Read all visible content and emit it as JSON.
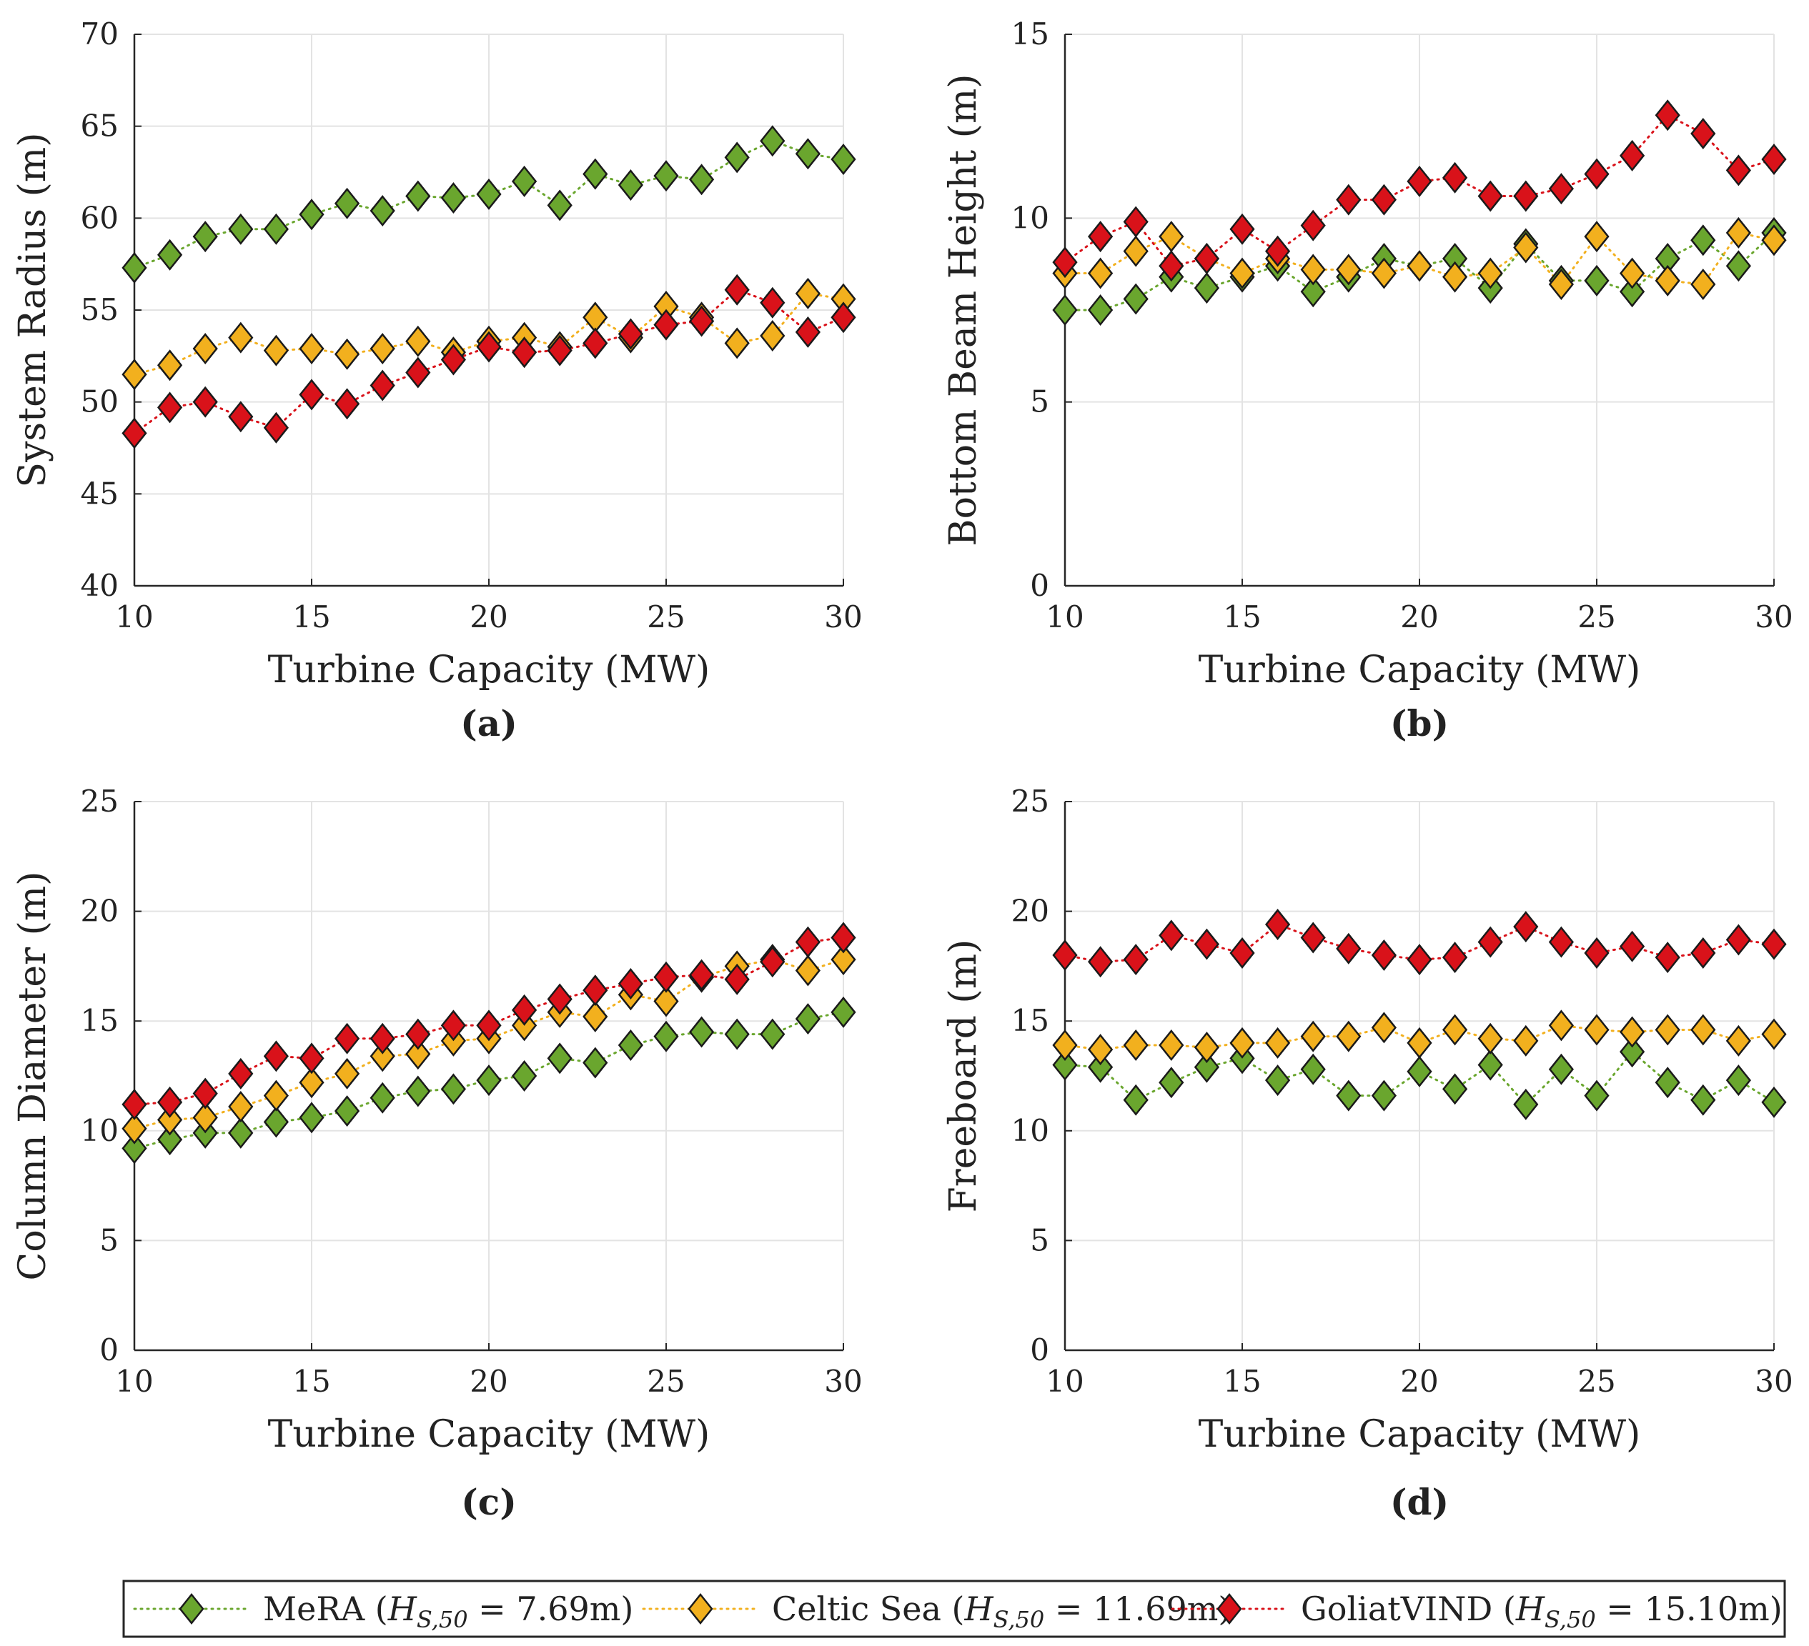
{
  "chart_data": [
    {
      "type": "line",
      "caption": "(a)",
      "xlabel": "Turbine Capacity (MW)",
      "ylabel": "System Radius (m)",
      "xlim": [
        10,
        30
      ],
      "ylim": [
        40,
        70
      ],
      "xticks": [
        10,
        15,
        20,
        25,
        30
      ],
      "yticks": [
        40,
        45,
        50,
        55,
        60,
        65,
        70
      ],
      "grid": true,
      "x": [
        10,
        11,
        12,
        13,
        14,
        15,
        16,
        17,
        18,
        19,
        20,
        21,
        22,
        23,
        24,
        25,
        26,
        27,
        28,
        29,
        30
      ],
      "series": [
        {
          "name": "MeRA",
          "values": [
            57.3,
            58.0,
            59.0,
            59.4,
            59.4,
            60.2,
            60.8,
            60.4,
            61.2,
            61.1,
            61.3,
            62.0,
            60.7,
            62.4,
            61.8,
            62.3,
            62.1,
            63.3,
            64.2,
            63.5,
            63.2
          ]
        },
        {
          "name": "Celtic Sea",
          "values": [
            51.5,
            52.0,
            52.9,
            53.5,
            52.8,
            52.9,
            52.6,
            52.9,
            53.3,
            52.7,
            53.3,
            53.5,
            53.0,
            54.6,
            53.5,
            55.2,
            54.6,
            53.2,
            53.6,
            55.9,
            55.6
          ]
        },
        {
          "name": "GoliatVIND",
          "values": [
            48.3,
            49.7,
            50.0,
            49.2,
            48.6,
            50.4,
            49.9,
            50.9,
            51.6,
            52.3,
            53.0,
            52.7,
            52.8,
            53.2,
            53.7,
            54.2,
            54.4,
            56.1,
            55.4,
            53.8,
            54.6
          ]
        }
      ]
    },
    {
      "type": "line",
      "caption": "(b)",
      "xlabel": "Turbine Capacity (MW)",
      "ylabel": "Bottom Beam Height (m)",
      "xlim": [
        10,
        30
      ],
      "ylim": [
        0,
        15
      ],
      "xticks": [
        10,
        15,
        20,
        25,
        30
      ],
      "yticks": [
        0,
        5,
        10,
        15
      ],
      "grid": true,
      "x": [
        10,
        11,
        12,
        13,
        14,
        15,
        16,
        17,
        18,
        19,
        20,
        21,
        22,
        23,
        24,
        25,
        26,
        27,
        28,
        29,
        30
      ],
      "series": [
        {
          "name": "MeRA",
          "values": [
            7.5,
            7.5,
            7.8,
            8.4,
            8.1,
            8.4,
            8.7,
            8.0,
            8.4,
            8.9,
            8.7,
            8.9,
            8.1,
            9.3,
            8.3,
            8.3,
            8.0,
            8.9,
            9.4,
            8.7,
            9.6
          ]
        },
        {
          "name": "Celtic Sea",
          "values": [
            8.5,
            8.5,
            9.1,
            9.5,
            8.9,
            8.5,
            8.9,
            8.6,
            8.6,
            8.5,
            8.7,
            8.4,
            8.5,
            9.2,
            8.2,
            9.5,
            8.5,
            8.3,
            8.2,
            9.6,
            9.4
          ]
        },
        {
          "name": "GoliatVIND",
          "values": [
            8.8,
            9.5,
            9.9,
            8.7,
            8.9,
            9.7,
            9.1,
            9.8,
            10.5,
            10.5,
            11.0,
            11.1,
            10.6,
            10.6,
            10.8,
            11.2,
            11.7,
            12.8,
            12.3,
            11.3,
            11.6
          ]
        }
      ]
    },
    {
      "type": "line",
      "caption": "(c)",
      "xlabel": "Turbine Capacity (MW)",
      "ylabel": "Column Diameter (m)",
      "xlim": [
        10,
        30
      ],
      "ylim": [
        0,
        25
      ],
      "xticks": [
        10,
        15,
        20,
        25,
        30
      ],
      "yticks": [
        0,
        5,
        10,
        15,
        20,
        25
      ],
      "grid": true,
      "x": [
        10,
        11,
        12,
        13,
        14,
        15,
        16,
        17,
        18,
        19,
        20,
        21,
        22,
        23,
        24,
        25,
        26,
        27,
        28,
        29,
        30
      ],
      "series": [
        {
          "name": "MeRA",
          "values": [
            9.2,
            9.6,
            9.9,
            9.9,
            10.4,
            10.6,
            10.9,
            11.5,
            11.8,
            11.9,
            12.3,
            12.5,
            13.3,
            13.1,
            13.9,
            14.3,
            14.5,
            14.4,
            14.4,
            15.1,
            15.4
          ]
        },
        {
          "name": "Celtic Sea",
          "values": [
            10.1,
            10.5,
            10.6,
            11.1,
            11.6,
            12.2,
            12.6,
            13.4,
            13.5,
            14.1,
            14.2,
            14.8,
            15.4,
            15.2,
            16.2,
            15.9,
            17.0,
            17.5,
            17.8,
            17.3,
            17.8
          ]
        },
        {
          "name": "GoliatVIND",
          "values": [
            11.2,
            11.3,
            11.7,
            12.6,
            13.4,
            13.3,
            14.2,
            14.2,
            14.4,
            14.8,
            14.8,
            15.5,
            16.0,
            16.4,
            16.7,
            17.0,
            17.1,
            16.9,
            17.7,
            18.6,
            18.8
          ]
        }
      ]
    },
    {
      "type": "line",
      "caption": "(d)",
      "xlabel": "Turbine Capacity (MW)",
      "ylabel": "Freeboard (m)",
      "xlim": [
        10,
        30
      ],
      "ylim": [
        0,
        25
      ],
      "xticks": [
        10,
        15,
        20,
        25,
        30
      ],
      "yticks": [
        0,
        5,
        10,
        15,
        20,
        25
      ],
      "grid": true,
      "x": [
        10,
        11,
        12,
        13,
        14,
        15,
        16,
        17,
        18,
        19,
        20,
        21,
        22,
        23,
        24,
        25,
        26,
        27,
        28,
        29,
        30
      ],
      "series": [
        {
          "name": "MeRA",
          "values": [
            13.0,
            12.9,
            11.4,
            12.2,
            12.9,
            13.3,
            12.3,
            12.8,
            11.6,
            11.6,
            12.7,
            11.9,
            13.0,
            11.2,
            12.8,
            11.6,
            13.6,
            12.2,
            11.4,
            12.3,
            11.3
          ]
        },
        {
          "name": "Celtic Sea",
          "values": [
            13.9,
            13.7,
            13.9,
            13.9,
            13.8,
            14.0,
            14.0,
            14.3,
            14.3,
            14.7,
            14.0,
            14.6,
            14.2,
            14.1,
            14.8,
            14.6,
            14.5,
            14.6,
            14.6,
            14.1,
            14.4
          ]
        },
        {
          "name": "GoliatVIND",
          "values": [
            18.0,
            17.7,
            17.8,
            18.9,
            18.5,
            18.1,
            19.4,
            18.8,
            18.3,
            18.0,
            17.8,
            17.9,
            18.6,
            19.3,
            18.6,
            18.1,
            18.4,
            17.9,
            18.1,
            18.7,
            18.5
          ]
        }
      ]
    }
  ],
  "legend": {
    "location": "bottom",
    "entries": [
      {
        "name": "MeRA",
        "label": "MeRA (H_S,50 = 7.69m)",
        "prefix": "MeRA (",
        "math": "H",
        "sub": "S,50",
        "suffix": " = 7.69m)",
        "color": "#6aa62e"
      },
      {
        "name": "Celtic Sea",
        "label": "Celtic Sea (H_S,50 = 11.69m)",
        "prefix": "Celtic Sea (",
        "math": "H",
        "sub": "S,50",
        "suffix": " = 11.69m)",
        "color": "#f2b01e"
      },
      {
        "name": "GoliatVIND",
        "label": "GoliatVIND (H_S,50 = 15.10m)",
        "prefix": "GoliatVIND (",
        "math": "H",
        "sub": "S,50",
        "suffix": " = 15.10m)",
        "color": "#d9121a"
      }
    ]
  },
  "colors": {
    "MeRA": "#6aa62e",
    "Celtic Sea": "#f2b01e",
    "GoliatVIND": "#d9121a",
    "grid": "#e3e3e3",
    "axis": "#262626"
  }
}
